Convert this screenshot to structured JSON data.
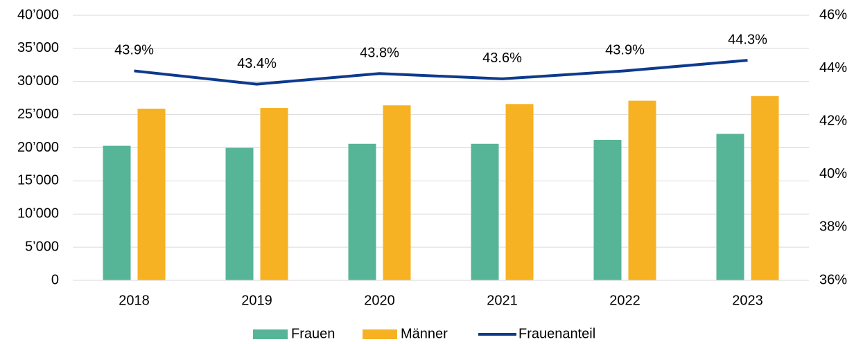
{
  "chart_data": {
    "type": "bar",
    "categories": [
      "2018",
      "2019",
      "2020",
      "2021",
      "2022",
      "2023"
    ],
    "series": [
      {
        "name": "Frauen",
        "color": "#56b596",
        "values": [
          20300,
          20000,
          20600,
          20600,
          21200,
          22100
        ]
      },
      {
        "name": "Männer",
        "color": "#f6b223",
        "values": [
          25900,
          26000,
          26400,
          26600,
          27100,
          27800
        ]
      },
      {
        "name": "Frauenanteil",
        "type": "line",
        "axis": "y2",
        "color": "#0d3a8c",
        "values": [
          43.9,
          43.4,
          43.8,
          43.6,
          43.9,
          44.3
        ],
        "value_labels": [
          "43.9%",
          "43.4%",
          "43.8%",
          "43.6%",
          "43.9%",
          "44.3%"
        ]
      }
    ],
    "ylim": [
      0,
      40000
    ],
    "yticks": [
      0,
      {
        "value": 5000,
        "label": "5’000"
      },
      {
        "value": 10000,
        "label": "10’000"
      },
      {
        "value": 15000,
        "label": "15’000"
      },
      {
        "value": 20000,
        "label": "20’000"
      },
      {
        "value": 25000,
        "label": "25’000"
      },
      {
        "value": 30000,
        "label": "30’000"
      },
      {
        "value": 35000,
        "label": "35’000"
      },
      {
        "value": 40000,
        "label": "40’000"
      }
    ],
    "y2lim": [
      36,
      46
    ],
    "y2ticks": [
      {
        "value": 36,
        "label": "36%"
      },
      {
        "value": 38,
        "label": "38%"
      },
      {
        "value": 40,
        "label": "40%"
      },
      {
        "value": 42,
        "label": "42%"
      },
      {
        "value": 44,
        "label": "44%"
      },
      {
        "value": 46,
        "label": "46%"
      }
    ],
    "grid": true,
    "legend": "bottom"
  }
}
